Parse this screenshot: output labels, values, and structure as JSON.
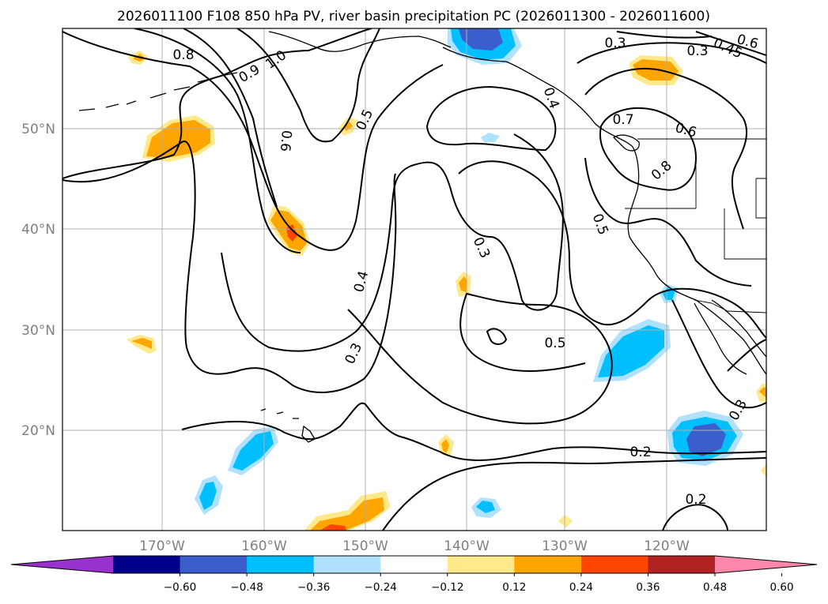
{
  "title": "2026011100 F108 850 hPa PV, river basin precipitation PC (2026011300 - 2026011600)",
  "map": {
    "lon_labels": [
      "170°W",
      "160°W",
      "150°W",
      "140°W",
      "130°W",
      "120°W"
    ],
    "lat_labels": [
      "50°N",
      "40°N",
      "30°N",
      "20°N"
    ]
  },
  "contour_labels": [
    {
      "text": "0.8"
    },
    {
      "text": "1.0"
    },
    {
      "text": "0.9"
    },
    {
      "text": "0.5"
    },
    {
      "text": "0.6"
    },
    {
      "text": "0.4"
    },
    {
      "text": "0.3"
    },
    {
      "text": "0.3"
    },
    {
      "text": "0.3"
    },
    {
      "text": "0.4"
    },
    {
      "text": "0.7"
    },
    {
      "text": "0.6"
    },
    {
      "text": "0.8"
    },
    {
      "text": "0.5"
    },
    {
      "text": "0.5"
    },
    {
      "text": "0.3"
    },
    {
      "text": "0.2"
    },
    {
      "text": "0.2"
    },
    {
      "text": "0.3"
    },
    {
      "text": "0.45"
    },
    {
      "text": "0.6"
    }
  ],
  "colorbar": {
    "ticks": [
      "−0.60",
      "−0.48",
      "−0.36",
      "−0.24",
      "−0.12",
      "0.12",
      "0.24",
      "0.36",
      "0.48",
      "0.60"
    ],
    "colors": [
      "#9932cc",
      "#00008b",
      "#3a5fcd",
      "#00bfff",
      "#b0e2ff",
      "#ffffff",
      "#ffe98a",
      "#ffa500",
      "#ff4500",
      "#b22222",
      "#ff88aa"
    ]
  },
  "field_colors": {
    "pos_light": "#ffe98a",
    "pos_mid": "#ffa500",
    "pos_high": "#ff4500",
    "neg_light": "#b0e2ff",
    "neg_mid": "#00bfff",
    "neg_high": "#3a5fcd"
  }
}
